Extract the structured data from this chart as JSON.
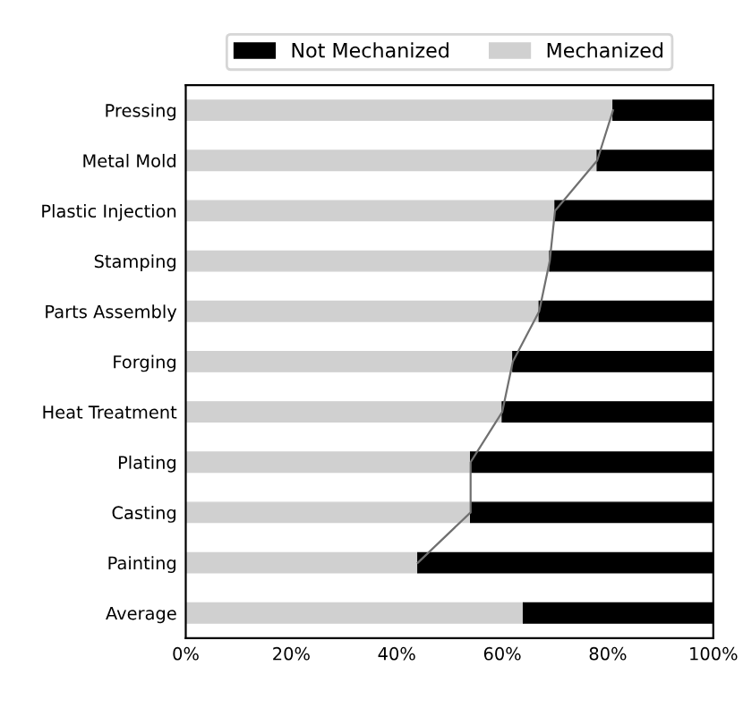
{
  "chart_data": {
    "type": "bar",
    "orientation": "horizontal",
    "stacked": true,
    "categories": [
      "Pressing",
      "Metal Mold",
      "Plastic Injection",
      "Stamping",
      "Parts Assembly",
      "Forging",
      "Heat Treatment",
      "Plating",
      "Casting",
      "Painting",
      "Average"
    ],
    "series": [
      {
        "name": "Mechanized",
        "color": "#d0d0d0",
        "values": [
          81,
          78,
          70,
          69,
          67,
          62,
          60,
          54,
          54,
          44,
          64
        ]
      },
      {
        "name": "Not Mechanized",
        "color": "#000000",
        "values": [
          19,
          22,
          30,
          31,
          33,
          38,
          40,
          46,
          46,
          56,
          36
        ]
      },
      {
        "type": "line",
        "color": "#707070",
        "values": [
          81,
          78,
          70,
          69,
          67,
          62,
          60,
          54,
          54,
          44,
          null
        ]
      }
    ],
    "xlim": [
      0,
      100
    ],
    "xticks": [
      {
        "value": 0,
        "label": "0%"
      },
      {
        "value": 20,
        "label": "20%"
      },
      {
        "value": 40,
        "label": "40%"
      },
      {
        "value": 60,
        "label": "60%"
      },
      {
        "value": 80,
        "label": "80%"
      },
      {
        "value": 100,
        "label": "100%"
      }
    ],
    "legend": "top",
    "grid": false
  }
}
